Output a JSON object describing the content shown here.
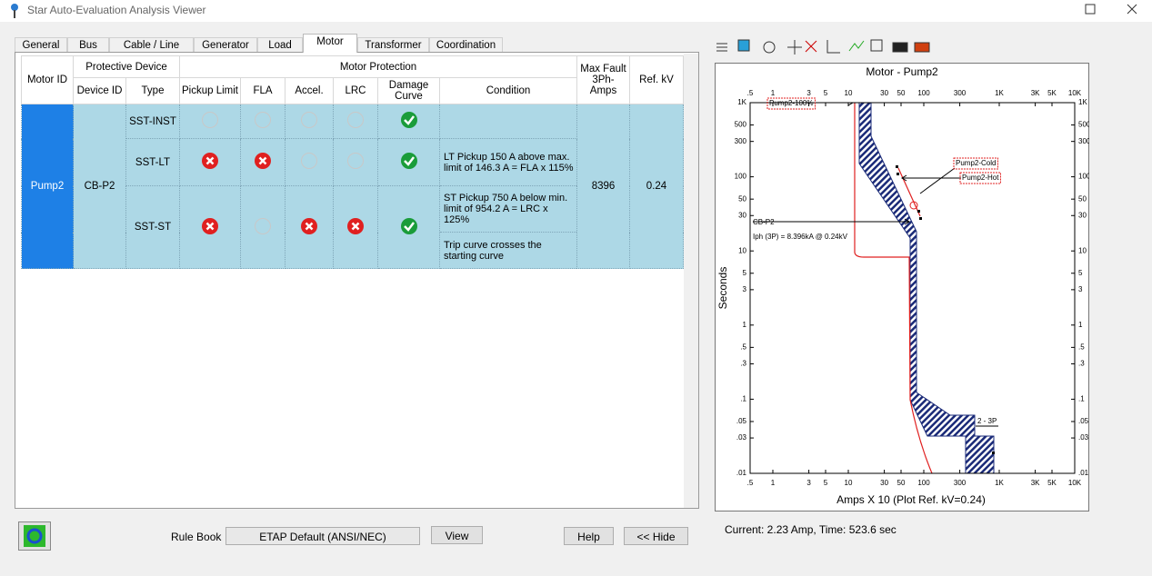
{
  "window": {
    "title": "Star Auto-Evaluation Analysis Viewer"
  },
  "tabs": {
    "items": [
      "General",
      "Bus",
      "Cable / Line",
      "Generator",
      "Load",
      "Motor",
      "Transformer",
      "Coordination"
    ],
    "active": 5
  },
  "table": {
    "headers": {
      "motor_id": "Motor ID",
      "protective_device": "Protective Device",
      "device_id": "Device ID",
      "type": "Type",
      "motor_protection": "Motor Protection",
      "checks": [
        "Pickup Limit",
        "FLA",
        "Accel.",
        "LRC",
        "Damage Curve"
      ],
      "condition": "Condition",
      "max_fault": "Max Fault 3Ph-Amps",
      "ref_kv": "Ref. kV"
    },
    "motor_id": "Pump2",
    "device_id": "CB-P2",
    "max_fault": 8396,
    "ref_kv": 0.24,
    "rows": [
      {
        "type": "SST-INST",
        "checks": [
          "na",
          "na",
          "na",
          "na",
          "pass"
        ],
        "conditions": []
      },
      {
        "type": "SST-LT",
        "checks": [
          "fail",
          "fail",
          "na",
          "na",
          "pass"
        ],
        "conditions": [
          "LT Pickup 150 A above max. limit of 146.3 A = FLA x 115%"
        ]
      },
      {
        "type": "SST-ST",
        "checks": [
          "fail",
          "na",
          "fail",
          "fail",
          "pass"
        ],
        "conditions": [
          "ST Pickup 750 A below min. limit of 954.2 A = LRC x 125%",
          "Trip curve crosses the starting curve"
        ]
      }
    ]
  },
  "plot": {
    "title": "Motor - Pump2",
    "x_label": "Amps  X  10 (Plot Ref. kV=0.24)",
    "y_label": "Seconds",
    "xscale": "log",
    "yscale": "log",
    "xlim": [
      0.5,
      10000
    ],
    "ylim": [
      0.01,
      1000
    ],
    "xticks": [
      {
        "value": 0.5,
        "label": ".5"
      },
      1,
      3,
      5,
      10,
      30,
      50,
      100,
      300,
      {
        "value": 1000,
        "label": "1K"
      },
      {
        "value": 3000,
        "label": "3K"
      },
      {
        "value": 5000,
        "label": "5K"
      },
      {
        "value": 10000,
        "label": "10K"
      }
    ],
    "yticks": [
      {
        "value": 1000,
        "label": "1K"
      },
      500,
      300,
      100,
      50,
      30,
      10,
      5,
      3,
      1,
      {
        "value": 0.5,
        "label": ".5"
      },
      {
        "value": 0.3,
        "label": ".3"
      },
      {
        "value": 0.1,
        "label": ".1"
      },
      {
        "value": 0.05,
        "label": ".05"
      },
      {
        "value": 0.03,
        "label": ".03"
      },
      {
        "value": 0.01,
        "label": ".01"
      }
    ],
    "annotations": [
      "Pump2-100%",
      "Pump2-Cold",
      "Pump2-Hot",
      "CB-P2",
      "Iph (3P) = 8.396kA @ 0.24kV",
      "2 - 3P"
    ]
  },
  "status": "Current: 2.23 Amp,  Time: 523.6 sec",
  "footer": {
    "rule_book_label": "Rule Book",
    "rule_book": "ETAP Default (ANSI/NEC)",
    "view": "View",
    "help": "Help",
    "hide": "<< Hide"
  }
}
